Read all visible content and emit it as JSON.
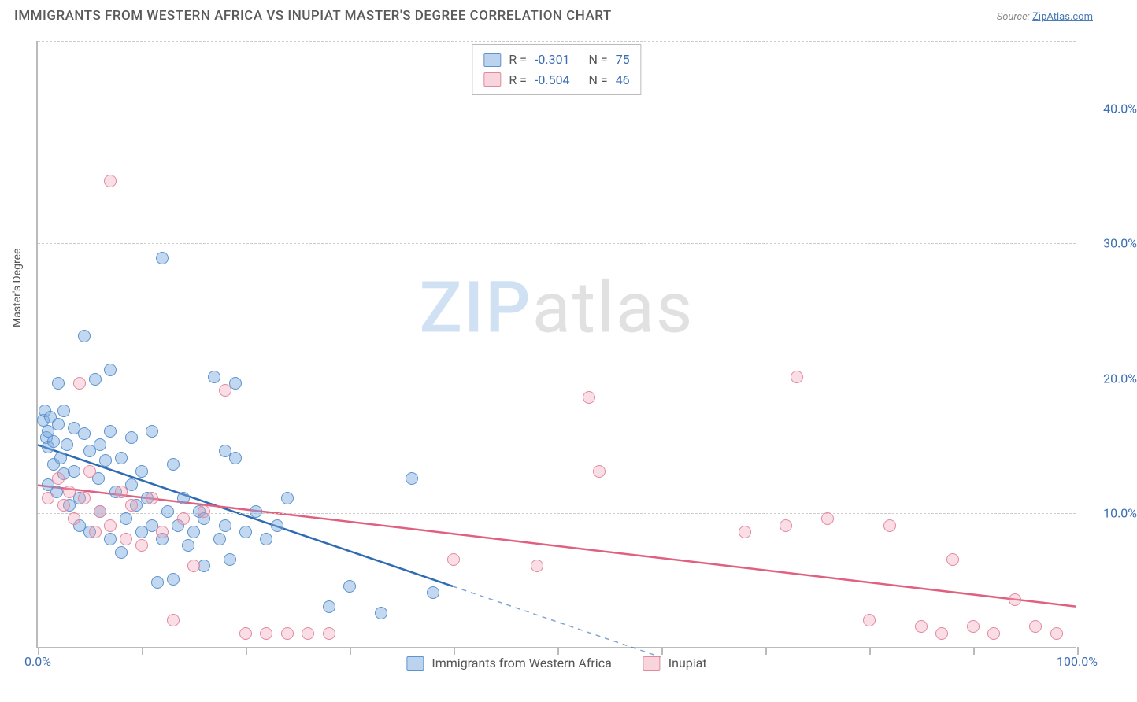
{
  "header": {
    "title": "IMMIGRANTS FROM WESTERN AFRICA VS INUPIAT MASTER'S DEGREE CORRELATION CHART",
    "source_prefix": "Source: ",
    "source_link": "ZipAtlas.com"
  },
  "watermark": {
    "part1": "ZIP",
    "part2": "atlas"
  },
  "chart": {
    "type": "scatter",
    "xlim": [
      0,
      100
    ],
    "ylim": [
      0,
      45
    ],
    "x_ticks": [
      0,
      10,
      20,
      30,
      40,
      50,
      60,
      70,
      80,
      90,
      100
    ],
    "x_tick_labels": {
      "0": "0.0%",
      "100": "100.0%"
    },
    "y_gridlines": [
      10,
      20,
      30,
      40,
      45
    ],
    "y_tick_labels": {
      "10": "10.0%",
      "20": "20.0%",
      "30": "30.0%",
      "40": "40.0%"
    },
    "y_axis_label": "Master's Degree",
    "background_color": "#ffffff",
    "grid_color": "#cccccc",
    "axis_color": "#bbbbbb",
    "tick_label_color": "#3b6db3",
    "legend_top": {
      "rows": [
        {
          "swatch": "a",
          "r_label": "R =",
          "r_value": "-0.301",
          "n_label": "N =",
          "n_value": "75"
        },
        {
          "swatch": "b",
          "r_label": "R =",
          "r_value": "-0.504",
          "n_label": "N =",
          "n_value": "46"
        }
      ]
    },
    "legend_bottom": {
      "items": [
        {
          "swatch": "a",
          "label": "Immigrants from Western Africa"
        },
        {
          "swatch": "b",
          "label": "Inupiat"
        }
      ]
    },
    "series": [
      {
        "name": "Immigrants from Western Africa",
        "color_fill": "rgba(120,168,222,0.45)",
        "color_stroke": "#5e93ce",
        "marker": "circle",
        "marker_size": 16,
        "trend": {
          "x1": 0,
          "y1": 15.0,
          "x2": 40,
          "y2": 4.5,
          "extend_dashed_to_x": 60,
          "color": "#2e6bb3",
          "width": 2.5
        },
        "points": [
          [
            0.5,
            16.8
          ],
          [
            0.7,
            17.5
          ],
          [
            0.8,
            15.5
          ],
          [
            1.0,
            16.0
          ],
          [
            1.0,
            14.8
          ],
          [
            1.0,
            12.0
          ],
          [
            1.2,
            17.0
          ],
          [
            1.5,
            15.2
          ],
          [
            1.5,
            13.5
          ],
          [
            1.8,
            11.5
          ],
          [
            2.0,
            19.5
          ],
          [
            2.0,
            16.5
          ],
          [
            2.2,
            14.0
          ],
          [
            2.5,
            17.5
          ],
          [
            2.5,
            12.8
          ],
          [
            2.8,
            15.0
          ],
          [
            3.0,
            10.5
          ],
          [
            3.5,
            13.0
          ],
          [
            3.5,
            16.2
          ],
          [
            4.0,
            11.0
          ],
          [
            4.0,
            9.0
          ],
          [
            4.5,
            23.0
          ],
          [
            4.5,
            15.8
          ],
          [
            5.0,
            14.5
          ],
          [
            5.0,
            8.5
          ],
          [
            5.5,
            19.8
          ],
          [
            5.8,
            12.5
          ],
          [
            6.0,
            15.0
          ],
          [
            6.0,
            10.0
          ],
          [
            6.5,
            13.8
          ],
          [
            7.0,
            20.5
          ],
          [
            7.0,
            16.0
          ],
          [
            7.0,
            8.0
          ],
          [
            7.5,
            11.5
          ],
          [
            8.0,
            14.0
          ],
          [
            8.0,
            7.0
          ],
          [
            8.5,
            9.5
          ],
          [
            9.0,
            12.0
          ],
          [
            9.0,
            15.5
          ],
          [
            9.5,
            10.5
          ],
          [
            10.0,
            8.5
          ],
          [
            10.0,
            13.0
          ],
          [
            10.5,
            11.0
          ],
          [
            11.0,
            9.0
          ],
          [
            11.0,
            16.0
          ],
          [
            11.5,
            4.8
          ],
          [
            12.0,
            28.8
          ],
          [
            12.0,
            8.0
          ],
          [
            12.5,
            10.0
          ],
          [
            13.0,
            13.5
          ],
          [
            13.0,
            5.0
          ],
          [
            13.5,
            9.0
          ],
          [
            14.0,
            11.0
          ],
          [
            14.5,
            7.5
          ],
          [
            15.0,
            8.5
          ],
          [
            15.5,
            10.0
          ],
          [
            16.0,
            9.5
          ],
          [
            16.0,
            6.0
          ],
          [
            17.0,
            20.0
          ],
          [
            17.5,
            8.0
          ],
          [
            18.0,
            14.5
          ],
          [
            18.0,
            9.0
          ],
          [
            18.5,
            6.5
          ],
          [
            19.0,
            14.0
          ],
          [
            19.0,
            19.5
          ],
          [
            20.0,
            8.5
          ],
          [
            21.0,
            10.0
          ],
          [
            22.0,
            8.0
          ],
          [
            23.0,
            9.0
          ],
          [
            24.0,
            11.0
          ],
          [
            28.0,
            3.0
          ],
          [
            30.0,
            4.5
          ],
          [
            33.0,
            2.5
          ],
          [
            36.0,
            12.5
          ],
          [
            38.0,
            4.0
          ]
        ]
      },
      {
        "name": "Inupiat",
        "color_fill": "rgba(240,160,180,0.35)",
        "color_stroke": "#e488a0",
        "marker": "circle",
        "marker_size": 16,
        "trend": {
          "x1": 0,
          "y1": 12.0,
          "x2": 100,
          "y2": 3.0,
          "color": "#e0607f",
          "width": 2.5
        },
        "points": [
          [
            1.0,
            11.0
          ],
          [
            2.0,
            12.5
          ],
          [
            2.5,
            10.5
          ],
          [
            3.0,
            11.5
          ],
          [
            3.5,
            9.5
          ],
          [
            4.0,
            19.5
          ],
          [
            4.5,
            11.0
          ],
          [
            5.0,
            13.0
          ],
          [
            5.5,
            8.5
          ],
          [
            6.0,
            10.0
          ],
          [
            7.0,
            34.5
          ],
          [
            7.0,
            9.0
          ],
          [
            8.0,
            11.5
          ],
          [
            8.5,
            8.0
          ],
          [
            9.0,
            10.5
          ],
          [
            10.0,
            7.5
          ],
          [
            11.0,
            11.0
          ],
          [
            12.0,
            8.5
          ],
          [
            13.0,
            2.0
          ],
          [
            14.0,
            9.5
          ],
          [
            15.0,
            6.0
          ],
          [
            16.0,
            10.0
          ],
          [
            18.0,
            19.0
          ],
          [
            20.0,
            1.0
          ],
          [
            22.0,
            1.0
          ],
          [
            24.0,
            1.0
          ],
          [
            26.0,
            1.0
          ],
          [
            28.0,
            1.0
          ],
          [
            40.0,
            6.5
          ],
          [
            48.0,
            6.0
          ],
          [
            53.0,
            18.5
          ],
          [
            54.0,
            13.0
          ],
          [
            68.0,
            8.5
          ],
          [
            72.0,
            9.0
          ],
          [
            73.0,
            20.0
          ],
          [
            76.0,
            9.5
          ],
          [
            80.0,
            2.0
          ],
          [
            82.0,
            9.0
          ],
          [
            85.0,
            1.5
          ],
          [
            87.0,
            1.0
          ],
          [
            88.0,
            6.5
          ],
          [
            90.0,
            1.5
          ],
          [
            92.0,
            1.0
          ],
          [
            94.0,
            3.5
          ],
          [
            96.0,
            1.5
          ],
          [
            98.0,
            1.0
          ]
        ]
      }
    ]
  }
}
